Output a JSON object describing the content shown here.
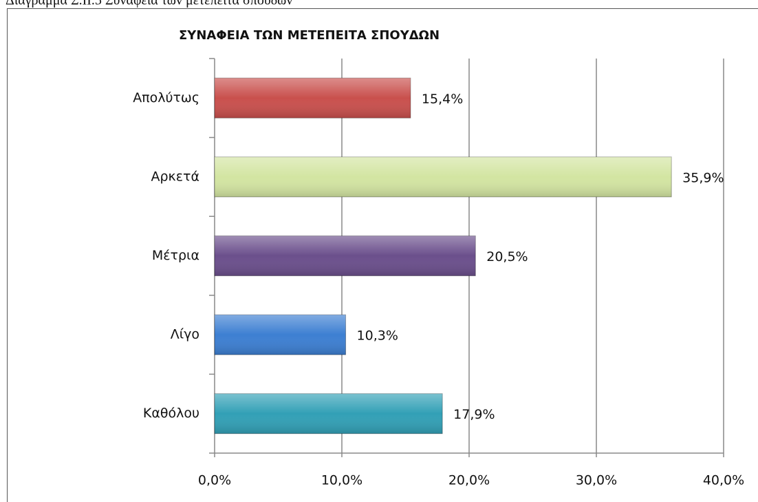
{
  "caption": "Διάγραμμα Σ.ΙΙ.5 Συνάφεια των μετέπειτα σπουδών",
  "chart_data": {
    "type": "hbar",
    "title": "ΣΥΝΑΦΕΙΑ ΤΩΝ ΜΕΤΕΠΕΙΤΑ ΣΠΟΥΔΩΝ",
    "categories": [
      "Απολύτως",
      "Αρκετά",
      "Μέτρια",
      "Λίγο",
      "Καθόλου"
    ],
    "values": [
      15.4,
      35.9,
      20.5,
      10.3,
      17.9
    ],
    "value_labels": [
      "15,4%",
      "35,9%",
      "20,5%",
      "10,3%",
      "17,9%"
    ],
    "colors": [
      "#c9504d",
      "#d3e5a2",
      "#6b4f8c",
      "#3d7fd2",
      "#32a0b6"
    ],
    "xlim": [
      0,
      40
    ],
    "xticks": [
      {
        "value": 0,
        "label": "0,0%"
      },
      {
        "value": 10,
        "label": "10,0%"
      },
      {
        "value": 20,
        "label": "20,0%"
      },
      {
        "value": 30,
        "label": "30,0%"
      },
      {
        "value": 40,
        "label": "40,0%"
      }
    ],
    "grid": true
  }
}
